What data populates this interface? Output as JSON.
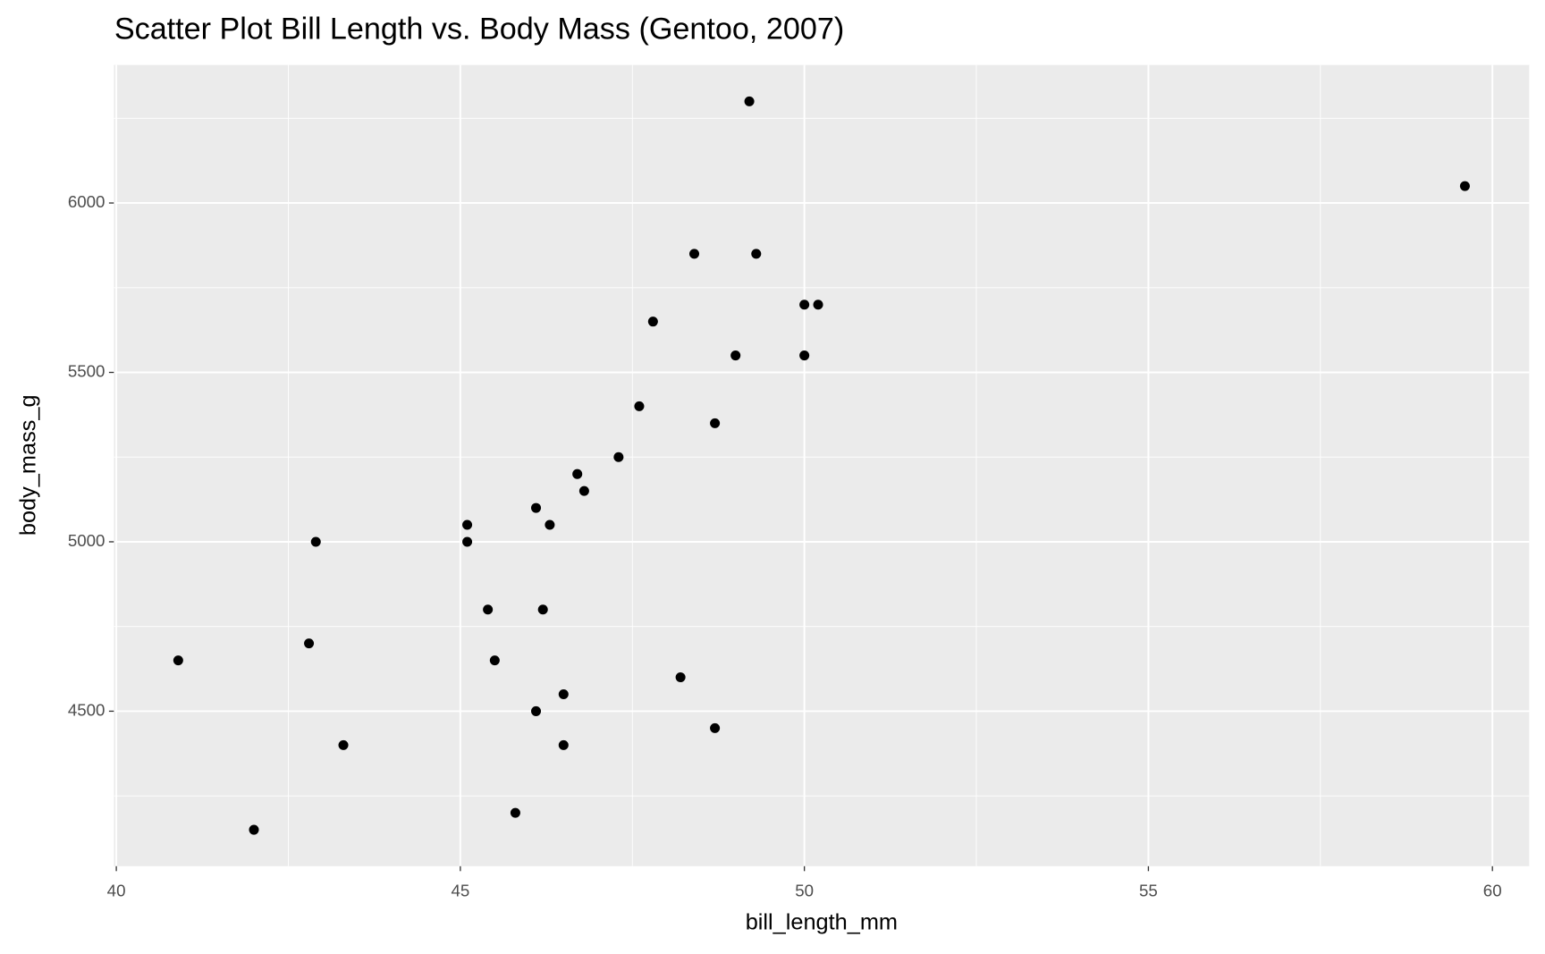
{
  "chart_data": {
    "type": "scatter",
    "title": "Scatter Plot Bill Length vs. Body Mass (Gentoo, 2007)",
    "x_label": "bill_length_mm",
    "y_label": "body_mass_g",
    "x": [
      49.2,
      59.6,
      48.4,
      49.3,
      50.0,
      50.2,
      47.8,
      49.0,
      50.0,
      47.6,
      48.7,
      47.3,
      46.7,
      46.8,
      46.1,
      45.1,
      46.3,
      42.9,
      45.1,
      45.4,
      46.2,
      42.8,
      40.9,
      45.5,
      48.2,
      46.5,
      46.1,
      48.7,
      43.3,
      46.5,
      45.8,
      42.0
    ],
    "values": [
      6300,
      6050,
      5850,
      5850,
      5700,
      5700,
      5650,
      5550,
      5550,
      5400,
      5350,
      5250,
      5200,
      5150,
      5100,
      5050,
      5050,
      5000,
      5000,
      4800,
      4800,
      4700,
      4650,
      4650,
      4600,
      4550,
      4500,
      4450,
      4400,
      4400,
      4200,
      4150
    ],
    "color": "#000000",
    "xlim": [
      39.965,
      60.535
    ],
    "xticks": [
      40,
      45,
      50,
      55,
      60
    ],
    "ylim": [
      4042.5,
      6407.5
    ],
    "yticks": [
      4500,
      5000,
      5500,
      6000
    ],
    "grid": true,
    "minor_grid": true
  }
}
